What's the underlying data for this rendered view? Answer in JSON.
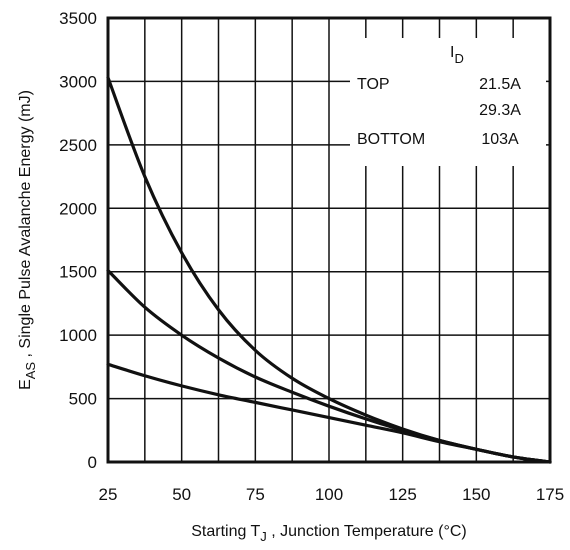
{
  "chart_data": {
    "type": "line",
    "title": "",
    "xlabel": {
      "prefix": "Starting T",
      "sub": "J",
      "suffix": " , Junction Temperature (°C)"
    },
    "ylabel": {
      "prefix": "E",
      "sub": "AS",
      "suffix": " , Single Pulse Avalanche Energy (mJ)"
    },
    "xlim": [
      25,
      175
    ],
    "ylim": [
      0,
      3500
    ],
    "x_ticks": [
      25,
      50,
      75,
      100,
      125,
      150,
      175
    ],
    "x_tick_labels": [
      "25",
      "50",
      "75",
      "100",
      "125",
      "150",
      "175"
    ],
    "y_ticks": [
      0,
      500,
      1000,
      1500,
      2000,
      2500,
      3000,
      3500
    ],
    "y_tick_labels": [
      "0",
      "500",
      "1000",
      "1500",
      "2000",
      "2500",
      "3000",
      "3500"
    ],
    "grid": true,
    "legend": {
      "placement": "top-right",
      "header_main": "I",
      "header_sub": "D",
      "rows": [
        {
          "label": "TOP",
          "value": "21.5A"
        },
        {
          "label": "",
          "value": "29.3A"
        },
        {
          "label": "BOTTOM",
          "value": "103A"
        }
      ]
    },
    "series": [
      {
        "x": [
          25,
          37.5,
          50,
          62.5,
          75,
          87.5,
          100,
          112.5,
          125,
          137.5,
          150,
          162.5,
          175
        ],
        "y": [
          3030,
          2250,
          1650,
          1200,
          880,
          660,
          500,
          370,
          260,
          170,
          100,
          40,
          0
        ]
      },
      {
        "x": [
          25,
          37.5,
          50,
          62.5,
          75,
          87.5,
          100,
          112.5,
          125,
          137.5,
          150,
          162.5,
          175
        ],
        "y": [
          1510,
          1220,
          1000,
          820,
          670,
          550,
          440,
          340,
          250,
          170,
          100,
          40,
          0
        ]
      },
      {
        "x": [
          25,
          37.5,
          50,
          62.5,
          75,
          87.5,
          100,
          112.5,
          125,
          137.5,
          150,
          162.5,
          175
        ],
        "y": [
          770,
          680,
          600,
          530,
          470,
          410,
          350,
          290,
          230,
          160,
          100,
          40,
          0
        ]
      }
    ]
  }
}
